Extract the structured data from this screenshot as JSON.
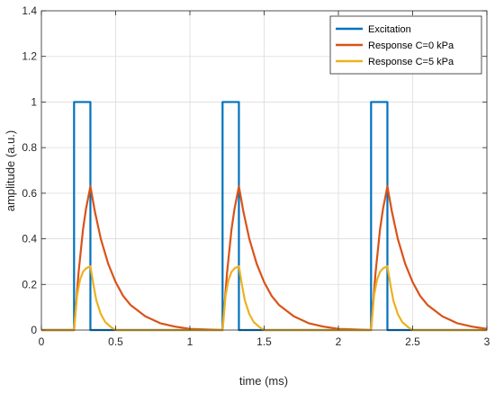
{
  "chart_data": {
    "type": "line",
    "xlabel": "time (ms)",
    "ylabel": "amplitude (a.u.)",
    "xlim": [
      0,
      3
    ],
    "ylim": [
      0,
      1.4
    ],
    "xticks": [
      0,
      0.5,
      1,
      1.5,
      2,
      2.5,
      3
    ],
    "xtick_labels": [
      "0",
      "0.5",
      "1",
      "1.5",
      "2",
      "2.5",
      "3"
    ],
    "yticks": [
      0,
      0.2,
      0.4,
      0.6,
      0.8,
      1,
      1.2,
      1.4
    ],
    "ytick_labels": [
      "0",
      "0.2",
      "0.4",
      "0.6",
      "0.8",
      "1",
      "1.2",
      "1.4"
    ],
    "grid": true,
    "legend_position": "top-right",
    "series": [
      {
        "name": "Excitation",
        "color": "#0072BD",
        "x": [
          0,
          0.22,
          0.22,
          0.33,
          0.33,
          1.22,
          1.22,
          1.33,
          1.33,
          2.22,
          2.22,
          2.33,
          2.33,
          3.0
        ],
        "y": [
          0,
          0,
          1,
          1,
          0,
          0,
          1,
          1,
          0,
          0,
          1,
          1,
          0,
          0
        ]
      },
      {
        "name": "Response C=0 kPa",
        "color": "#D95319",
        "x": [
          0,
          0.22,
          0.25,
          0.28,
          0.3,
          0.33,
          0.36,
          0.4,
          0.45,
          0.5,
          0.55,
          0.6,
          0.7,
          0.8,
          0.9,
          1.0,
          1.22,
          1.25,
          1.28,
          1.3,
          1.33,
          1.36,
          1.4,
          1.45,
          1.5,
          1.55,
          1.6,
          1.7,
          1.8,
          1.9,
          2.0,
          2.22,
          2.25,
          2.28,
          2.3,
          2.33,
          2.36,
          2.4,
          2.45,
          2.5,
          2.55,
          2.6,
          2.7,
          2.8,
          2.9,
          3.0
        ],
        "y": [
          0,
          0,
          0.25,
          0.44,
          0.53,
          0.63,
          0.52,
          0.4,
          0.29,
          0.21,
          0.15,
          0.11,
          0.06,
          0.03,
          0.015,
          0.005,
          0,
          0.25,
          0.44,
          0.53,
          0.63,
          0.52,
          0.4,
          0.29,
          0.21,
          0.15,
          0.11,
          0.06,
          0.03,
          0.015,
          0.005,
          0,
          0.25,
          0.44,
          0.53,
          0.63,
          0.52,
          0.4,
          0.29,
          0.21,
          0.15,
          0.11,
          0.06,
          0.03,
          0.015,
          0.005
        ]
      },
      {
        "name": "Response C=5 kPa",
        "color": "#EDB120",
        "x": [
          0,
          0.22,
          0.24,
          0.26,
          0.28,
          0.3,
          0.33,
          0.35,
          0.37,
          0.4,
          0.43,
          0.47,
          0.5,
          1.22,
          1.24,
          1.26,
          1.28,
          1.3,
          1.33,
          1.35,
          1.37,
          1.4,
          1.43,
          1.47,
          1.5,
          2.22,
          2.24,
          2.26,
          2.28,
          2.3,
          2.33,
          2.35,
          2.37,
          2.4,
          2.43,
          2.47,
          2.5,
          3.0
        ],
        "y": [
          0,
          0,
          0.15,
          0.22,
          0.255,
          0.27,
          0.28,
          0.2,
          0.13,
          0.07,
          0.035,
          0.012,
          0,
          0,
          0.15,
          0.22,
          0.255,
          0.27,
          0.28,
          0.2,
          0.13,
          0.07,
          0.035,
          0.012,
          0,
          0,
          0.15,
          0.22,
          0.255,
          0.27,
          0.28,
          0.2,
          0.13,
          0.07,
          0.035,
          0.012,
          0,
          0
        ]
      }
    ]
  }
}
